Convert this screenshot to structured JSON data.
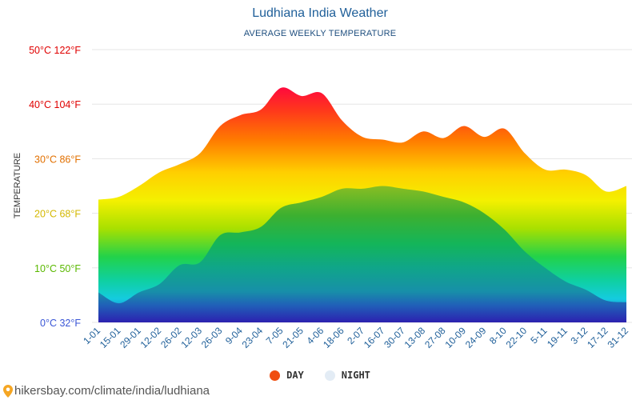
{
  "header": {
    "title": "Ludhiana India Weather",
    "subtitle": "AVERAGE WEEKLY TEMPERATURE"
  },
  "footer": {
    "url": "hikersbay.com/climate/india/ludhiana"
  },
  "legend": [
    {
      "label": "DAY",
      "color": "#f04e10"
    },
    {
      "label": "NIGHT",
      "color": "#e3ecf5"
    }
  ],
  "chart_data": {
    "type": "area",
    "title": "Ludhiana India Weather",
    "subtitle": "AVERAGE WEEKLY TEMPERATURE",
    "ylabel": "TEMPERATURE",
    "ylim": [
      0,
      50
    ],
    "yticks": [
      {
        "value": 0,
        "label": "0°C 32°F",
        "color": "#3a56d6"
      },
      {
        "value": 10,
        "label": "10°C 50°F",
        "color": "#5ab800"
      },
      {
        "value": 20,
        "label": "20°C 68°F",
        "color": "#d4b800"
      },
      {
        "value": 30,
        "label": "30°C 86°F",
        "color": "#e27000"
      },
      {
        "value": 40,
        "label": "40°C 104°F",
        "color": "#e00000"
      },
      {
        "value": 50,
        "label": "50°C 122°F",
        "color": "#e00000"
      }
    ],
    "x": [
      "1-01",
      "15-01",
      "29-01",
      "12-02",
      "26-02",
      "12-03",
      "26-03",
      "9-04",
      "23-04",
      "7-05",
      "21-05",
      "4-06",
      "18-06",
      "2-07",
      "16-07",
      "30-07",
      "13-08",
      "27-08",
      "10-09",
      "24-09",
      "8-10",
      "22-10",
      "5-11",
      "19-11",
      "3-12",
      "17-12",
      "31-12"
    ],
    "series": [
      {
        "name": "DAY",
        "values": [
          22.5,
          23,
          25,
          27.5,
          29,
          31,
          36,
          38,
          39,
          43,
          41.5,
          42,
          37,
          34,
          33.5,
          33,
          35,
          33.8,
          36,
          34,
          35.5,
          31,
          28,
          28,
          27,
          24,
          25
        ]
      },
      {
        "name": "NIGHT",
        "values": [
          5.5,
          3.5,
          5.5,
          7,
          10.5,
          11,
          16,
          16.5,
          17.5,
          21,
          22,
          23,
          24.5,
          24.5,
          25,
          24.5,
          24,
          23,
          22,
          20,
          17,
          13,
          10,
          7.5,
          6,
          4,
          3.7
        ]
      }
    ],
    "legend_position": "bottom-center",
    "grid": true
  }
}
